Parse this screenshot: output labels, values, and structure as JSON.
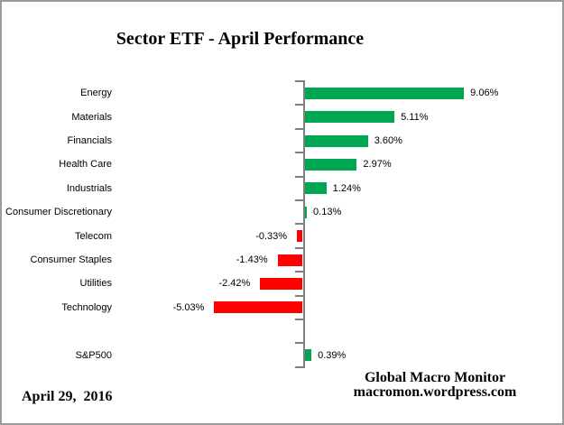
{
  "chart": {
    "title": "Sector ETF - April Performance"
  },
  "chart_data": {
    "type": "bar",
    "orientation": "horizontal",
    "title": "Sector ETF - April Performance",
    "xlabel": "",
    "ylabel": "",
    "xlim": [
      -6,
      10
    ],
    "grid": false,
    "legend": false,
    "categories": [
      "Energy",
      "Materials",
      "Financials",
      "Health Care",
      "Industrials",
      "Consumer Discretionary",
      "Telecom",
      "Consumer Staples",
      "Utilities",
      "Technology",
      "",
      "S&P500"
    ],
    "values": [
      9.06,
      5.11,
      3.6,
      2.97,
      1.24,
      0.13,
      -0.33,
      -1.43,
      -2.42,
      -5.03,
      null,
      0.39
    ],
    "value_labels": [
      "9.06%",
      "5.11%",
      "3.60%",
      "2.97%",
      "1.24%",
      "0.13%",
      "-0.33%",
      "-1.43%",
      "-2.42%",
      "-5.03%",
      "",
      "0.39%"
    ],
    "positive_color": "#00A651",
    "negative_color": "#FF0000",
    "axis_color": "#808080"
  },
  "footer": {
    "date": "April 29,  2016",
    "attribution_line1": "Global Macro Monitor",
    "attribution_line2": "macromon.wordpress.com"
  }
}
